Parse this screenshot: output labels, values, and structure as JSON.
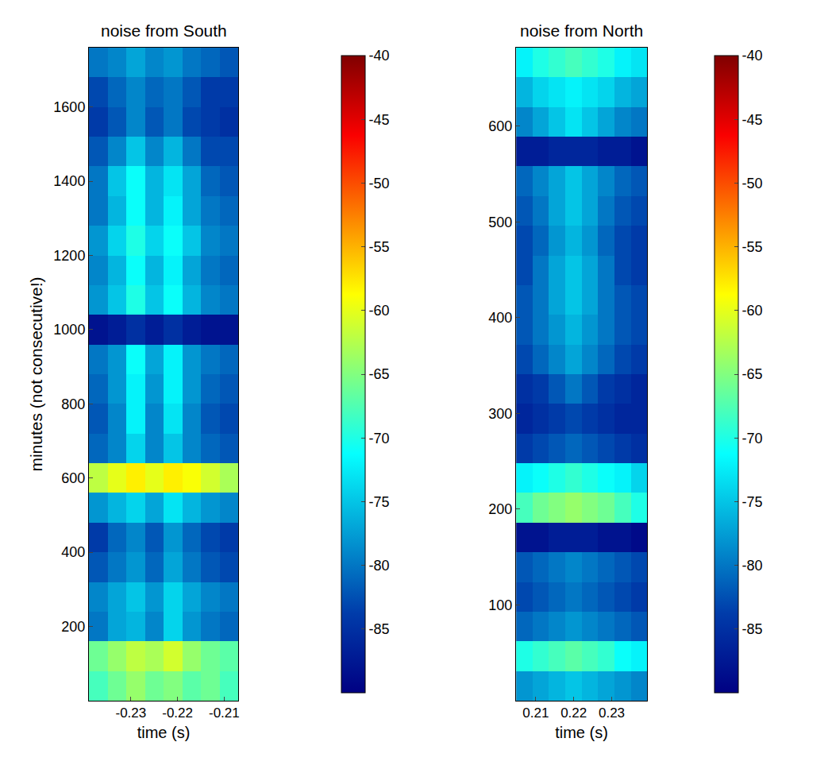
{
  "chart_data": [
    {
      "type": "heatmap",
      "title": "noise from South",
      "x_label": "time (s)",
      "y_label": "minutes (not consecutive!)",
      "color": "jet",
      "grid": false,
      "xlim": [
        -0.239,
        -0.207
      ],
      "xticks": [
        -0.23,
        -0.22,
        -0.21
      ],
      "ylim": [
        0,
        1760
      ],
      "yticks": [
        200,
        400,
        600,
        800,
        1000,
        1200,
        1400,
        1600
      ],
      "colorbar_range": [
        -90,
        -40
      ],
      "colorbar_ticks": [
        -85,
        -80,
        -75,
        -70,
        -65,
        -60,
        -55,
        -50,
        -45,
        -40
      ],
      "x": [
        -0.237,
        -0.233,
        -0.229,
        -0.225,
        -0.221,
        -0.217,
        -0.213,
        -0.209
      ],
      "y": [
        40,
        120,
        200,
        280,
        360,
        440,
        520,
        600,
        680,
        760,
        840,
        920,
        1000,
        1080,
        1160,
        1240,
        1320,
        1400,
        1480,
        1560,
        1640,
        1720
      ],
      "z": [
        [
          -68,
          -66,
          -64,
          -66,
          -65,
          -67,
          -66,
          -68
        ],
        [
          -66,
          -64,
          -62,
          -63,
          -61,
          -64,
          -66,
          -67
        ],
        [
          -80,
          -77,
          -76,
          -79,
          -74,
          -78,
          -80,
          -81
        ],
        [
          -79,
          -77,
          -75,
          -78,
          -74,
          -77,
          -79,
          -80
        ],
        [
          -82,
          -80,
          -78,
          -81,
          -77,
          -80,
          -82,
          -83
        ],
        [
          -84,
          -81,
          -79,
          -82,
          -78,
          -81,
          -83,
          -84
        ],
        [
          -78,
          -76,
          -74,
          -77,
          -73,
          -76,
          -78,
          -79
        ],
        [
          -62,
          -60,
          -58,
          -60,
          -58,
          -59,
          -61,
          -63
        ],
        [
          -81,
          -79,
          -74,
          -79,
          -75,
          -79,
          -81,
          -82
        ],
        [
          -82,
          -79,
          -72,
          -79,
          -73,
          -79,
          -82,
          -83
        ],
        [
          -81,
          -78,
          -72,
          -78,
          -72,
          -78,
          -81,
          -82
        ],
        [
          -80,
          -78,
          -71,
          -77,
          -72,
          -78,
          -80,
          -81
        ],
        [
          -88,
          -87,
          -85,
          -87,
          -85,
          -87,
          -88,
          -88
        ],
        [
          -78,
          -75,
          -70,
          -75,
          -71,
          -76,
          -79,
          -80
        ],
        [
          -79,
          -76,
          -71,
          -76,
          -72,
          -77,
          -80,
          -81
        ],
        [
          -78,
          -74,
          -70,
          -74,
          -71,
          -75,
          -79,
          -80
        ],
        [
          -80,
          -76,
          -71,
          -76,
          -72,
          -77,
          -80,
          -81
        ],
        [
          -80,
          -75,
          -71,
          -76,
          -73,
          -77,
          -81,
          -82
        ],
        [
          -82,
          -79,
          -75,
          -79,
          -76,
          -80,
          -83,
          -83
        ],
        [
          -84,
          -82,
          -79,
          -82,
          -80,
          -83,
          -84,
          -85
        ],
        [
          -83,
          -81,
          -79,
          -81,
          -80,
          -82,
          -84,
          -84
        ],
        [
          -80,
          -79,
          -77,
          -79,
          -78,
          -80,
          -81,
          -82
        ]
      ]
    },
    {
      "type": "heatmap",
      "title": "noise from North",
      "x_label": "time (s)",
      "color": "jet",
      "grid": false,
      "xlim": [
        0.2048,
        0.2393
      ],
      "xticks": [
        0.21,
        0.22,
        0.23
      ],
      "ylim": [
        0,
        682
      ],
      "yticks": [
        100,
        200,
        300,
        400,
        500,
        600
      ],
      "colorbar_range": [
        -90,
        -40
      ],
      "colorbar_ticks": [
        -85,
        -80,
        -75,
        -70,
        -65,
        -60,
        -55,
        -50,
        -45,
        -40
      ],
      "x": [
        0.207,
        0.2113,
        0.2156,
        0.2199,
        0.2242,
        0.2285,
        0.2328,
        0.2371
      ],
      "y": [
        15.5,
        46.5,
        77.5,
        108.5,
        139.5,
        170.5,
        201.5,
        232.5,
        263.5,
        294.5,
        325.5,
        356.5,
        387.5,
        418.5,
        449.5,
        480.5,
        511.5,
        542.5,
        573.5,
        604.5,
        635.5,
        666.5
      ],
      "z": [
        [
          -78,
          -77,
          -76,
          -75,
          -76,
          -77,
          -78,
          -79
        ],
        [
          -70,
          -69,
          -68,
          -67,
          -68,
          -69,
          -71,
          -72
        ],
        [
          -81,
          -80,
          -79,
          -78,
          -79,
          -80,
          -81,
          -82
        ],
        [
          -83,
          -82,
          -81,
          -80,
          -81,
          -82,
          -83,
          -84
        ],
        [
          -82,
          -81,
          -80,
          -79,
          -80,
          -81,
          -82,
          -83
        ],
        [
          -88,
          -88,
          -87,
          -87,
          -87,
          -88,
          -88,
          -89
        ],
        [
          -68,
          -66,
          -65,
          -64,
          -65,
          -66,
          -68,
          -70
        ],
        [
          -72,
          -71,
          -70,
          -69,
          -70,
          -71,
          -72,
          -74
        ],
        [
          -84,
          -83,
          -82,
          -81,
          -82,
          -83,
          -84,
          -85
        ],
        [
          -86,
          -85,
          -84,
          -83,
          -84,
          -85,
          -86,
          -86
        ],
        [
          -85,
          -84,
          -82,
          -80,
          -82,
          -84,
          -85,
          -86
        ],
        [
          -83,
          -81,
          -79,
          -77,
          -79,
          -81,
          -83,
          -84
        ],
        [
          -82,
          -80,
          -78,
          -76,
          -78,
          -80,
          -82,
          -83
        ],
        [
          -82,
          -80,
          -77,
          -75,
          -77,
          -80,
          -82,
          -83
        ],
        [
          -83,
          -80,
          -77,
          -75,
          -77,
          -80,
          -83,
          -84
        ],
        [
          -83,
          -81,
          -78,
          -76,
          -78,
          -81,
          -83,
          -84
        ],
        [
          -82,
          -80,
          -77,
          -75,
          -77,
          -80,
          -82,
          -83
        ],
        [
          -81,
          -79,
          -77,
          -75,
          -77,
          -79,
          -81,
          -82
        ],
        [
          -87,
          -87,
          -86,
          -86,
          -86,
          -87,
          -87,
          -88
        ],
        [
          -79,
          -77,
          -75,
          -73,
          -75,
          -77,
          -79,
          -80
        ],
        [
          -76,
          -74,
          -73,
          -72,
          -73,
          -74,
          -76,
          -77
        ],
        [
          -72,
          -70,
          -69,
          -68,
          -69,
          -70,
          -72,
          -73
        ]
      ]
    }
  ]
}
